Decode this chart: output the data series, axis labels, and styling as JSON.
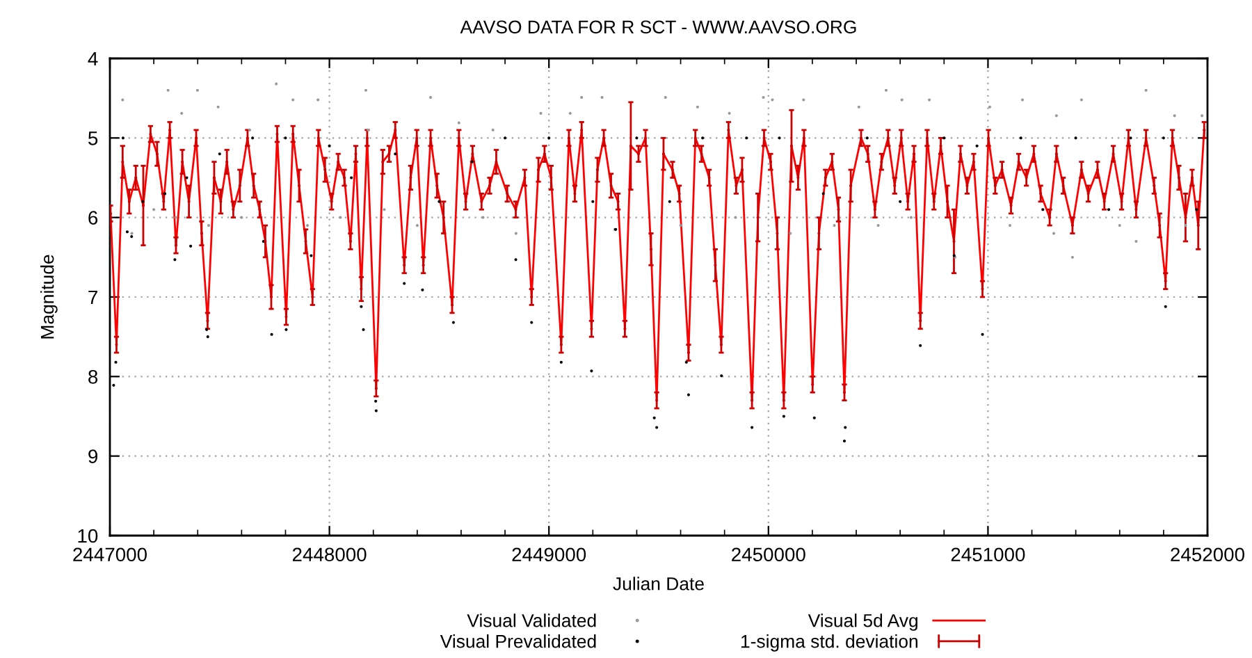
{
  "chart_data": {
    "type": "line",
    "title": "AAVSO DATA FOR R SCT - WWW.AAVSO.ORG",
    "xlabel": "Julian Date",
    "ylabel": "Magnitude",
    "xlim": [
      2447000,
      2452000
    ],
    "ylim": [
      10,
      4
    ],
    "xticks": [
      2447000,
      {
        "value": 2447200,
        "label": null
      },
      {
        "value": 2447400,
        "label": null
      },
      {
        "value": 2447600,
        "label": null
      },
      {
        "value": 2447800,
        "label": null
      },
      2448000,
      {
        "value": 2448200,
        "label": null
      },
      {
        "value": 2448400,
        "label": null
      },
      {
        "value": 2448600,
        "label": null
      },
      {
        "value": 2448800,
        "label": null
      },
      2449000,
      {
        "value": 2449200,
        "label": null
      },
      {
        "value": 2449400,
        "label": null
      },
      {
        "value": 2449600,
        "label": null
      },
      {
        "value": 2449800,
        "label": null
      },
      2450000,
      {
        "value": 2450200,
        "label": null
      },
      {
        "value": 2450400,
        "label": null
      },
      {
        "value": 2450600,
        "label": null
      },
      {
        "value": 2450800,
        "label": null
      },
      2451000,
      {
        "value": 2451200,
        "label": null
      },
      {
        "value": 2451400,
        "label": null
      },
      {
        "value": 2451600,
        "label": null
      },
      {
        "value": 2451800,
        "label": null
      },
      2452000
    ],
    "yticks": [
      4,
      5,
      6,
      7,
      8,
      9,
      10
    ],
    "grid": true,
    "legend": "bottom",
    "series": [
      {
        "name": "Visual Validated",
        "type": "scatter",
        "marker": "circle",
        "color": "#999999",
        "x": [
          2447058,
          2447265,
          2447327,
          2447399,
          2447493,
          2447637,
          2447758,
          2447834,
          2447948,
          2448166,
          2448176,
          2448461,
          2448590,
          2448745,
          2448963,
          2449097,
          2449149,
          2449242,
          2449531,
          2449677,
          2449822,
          2449977,
          2450018,
          2450160,
          2450412,
          2450536,
          2450608,
          2450733,
          2451008,
          2451157,
          2451312,
          2451426,
          2451720,
          2451850,
          2451975,
          2447100,
          2447200,
          2447300,
          2447450,
          2447600,
          2447700,
          2447900,
          2448050,
          2448250,
          2448400,
          2448700,
          2448850,
          2449300,
          2449600,
          2449850,
          2450100,
          2450300,
          2450500,
          2450650,
          2450850,
          2451100,
          2451300,
          2451385,
          2451600,
          2451675,
          2451900
        ],
        "values": [
          4.52,
          4.4,
          4.69,
          4.4,
          4.61,
          4.9,
          4.32,
          4.52,
          4.52,
          4.4,
          4.9,
          4.49,
          4.81,
          4.9,
          4.69,
          4.69,
          4.49,
          4.49,
          4.49,
          4.61,
          4.69,
          4.49,
          4.52,
          4.52,
          4.61,
          4.4,
          4.52,
          4.52,
          4.61,
          4.52,
          4.72,
          4.52,
          4.4,
          4.72,
          4.72,
          6.2,
          5.9,
          6.0,
          6.1,
          6.0,
          6.3,
          6.1,
          6.0,
          5.9,
          6.1,
          6.0,
          6.2,
          6.15,
          6.1,
          6.0,
          6.2,
          6.1,
          6.1,
          6.0,
          6.5,
          6.1,
          6.2,
          6.5,
          6.1,
          6.3,
          6.1
        ]
      },
      {
        "name": "Visual Prevalidated",
        "type": "scatter",
        "marker": "circle",
        "color": "#000000",
        "x": [
          2447017,
          2447027,
          2447079,
          2447099,
          2447296,
          2447368,
          2447441,
          2447446,
          2447700,
          2447737,
          2447803,
          2447917,
          2448145,
          2448155,
          2448211,
          2448213,
          2448341,
          2448424,
          2448565,
          2448849,
          2448921,
          2449056,
          2449194,
          2449304,
          2449480,
          2449491,
          2449626,
          2449636,
          2449786,
          2449925,
          2450070,
          2450209,
          2450346,
          2450350,
          2450692,
          2450846,
          2450975,
          2451809,
          2447060,
          2447150,
          2447250,
          2447350,
          2447500,
          2447650,
          2447800,
          2448000,
          2448100,
          2448300,
          2448500,
          2448650,
          2448800,
          2449000,
          2449200,
          2449400,
          2449550,
          2449700,
          2449900,
          2450050,
          2450250,
          2450450,
          2450600,
          2450800,
          2450950,
          2451150,
          2451250,
          2451400,
          2451550,
          2451650,
          2451800,
          2451950
        ],
        "values": [
          8.11,
          7.82,
          6.18,
          6.24,
          6.53,
          6.36,
          7.41,
          7.5,
          6.3,
          7.47,
          7.41,
          6.48,
          7.12,
          7.41,
          8.31,
          8.43,
          6.83,
          6.91,
          7.32,
          6.53,
          7.32,
          7.82,
          7.93,
          6.15,
          8.52,
          8.64,
          7.82,
          8.23,
          7.99,
          8.64,
          8.5,
          8.52,
          8.81,
          8.64,
          7.61,
          6.48,
          7.47,
          7.12,
          5.0,
          5.8,
          5.7,
          5.5,
          5.2,
          5.0,
          5.0,
          5.1,
          5.5,
          5.2,
          5.8,
          5.3,
          5.0,
          5.0,
          5.8,
          5.0,
          5.8,
          5.0,
          5.0,
          5.0,
          5.7,
          5.0,
          5.8,
          5.0,
          5.1,
          5.0,
          5.9,
          5.0,
          5.9,
          5.0,
          5.0,
          5.9
        ]
      },
      {
        "name": "Visual 5d Avg",
        "color": "#ff0000",
        "x": [
          2447003,
          2447030,
          2447058,
          2447088,
          2447118,
          2447152,
          2447185,
          2447215,
          2447245,
          2447273,
          2447301,
          2447330,
          2447360,
          2447393,
          2447418,
          2447445,
          2447475,
          2447505,
          2447533,
          2447562,
          2447592,
          2447627,
          2447655,
          2447682,
          2447708,
          2447735,
          2447762,
          2447803,
          2447834,
          2447862,
          2447892,
          2447923,
          2447950,
          2447980,
          2448010,
          2448040,
          2448068,
          2448096,
          2448120,
          2448145,
          2448172,
          2448213,
          2448243,
          2448272,
          2448300,
          2448341,
          2448370,
          2448398,
          2448428,
          2448461,
          2448490,
          2448520,
          2448559,
          2448590,
          2448621,
          2448652,
          2448693,
          2448730,
          2448760,
          2448810,
          2448849,
          2448890,
          2448921,
          2448952,
          2448980,
          2449010,
          2449056,
          2449091,
          2449118,
          2449149,
          2449194,
          2449221,
          2449250,
          2449283,
          2449315,
          2449346,
          2449373,
          2449408,
          2449440,
          2449465,
          2449491,
          2449522,
          2449563,
          2449594,
          2449636,
          2449667,
          2449695,
          2449730,
          2449758,
          2449785,
          2449818,
          2449853,
          2449880,
          2449925,
          2449952,
          2449980,
          2450010,
          2450040,
          2450070,
          2450105,
          2450135,
          2450162,
          2450201,
          2450230,
          2450260,
          2450290,
          2450319,
          2450346,
          2450375,
          2450422,
          2450453,
          2450485,
          2450515,
          2450545,
          2450575,
          2450605,
          2450635,
          2450663,
          2450692,
          2450723,
          2450754,
          2450785,
          2450815,
          2450845,
          2450875,
          2450905,
          2450935,
          2450975,
          2451002,
          2451033,
          2451064,
          2451105,
          2451140,
          2451175,
          2451209,
          2451240,
          2451281,
          2451312,
          2451343,
          2451385,
          2451426,
          2451457,
          2451499,
          2451530,
          2451571,
          2451609,
          2451640,
          2451675,
          2451720,
          2451757,
          2451782,
          2451809,
          2451840,
          2451870,
          2451900,
          2451930,
          2451958,
          2451985
        ],
        "values": [
          5.95,
          7.6,
          5.3,
          5.8,
          5.5,
          5.85,
          4.95,
          5.2,
          5.8,
          4.9,
          6.35,
          5.3,
          5.8,
          5.0,
          6.2,
          7.3,
          5.5,
          5.8,
          5.3,
          5.9,
          5.6,
          5.0,
          5.6,
          5.9,
          6.3,
          7.0,
          4.95,
          7.25,
          4.95,
          5.6,
          6.3,
          7.0,
          5.0,
          5.4,
          5.8,
          5.3,
          5.5,
          6.3,
          5.2,
          6.9,
          5.0,
          8.15,
          5.3,
          5.2,
          4.9,
          6.6,
          5.5,
          5.0,
          6.6,
          5.0,
          5.6,
          6.0,
          7.1,
          5.0,
          5.8,
          5.2,
          5.8,
          5.6,
          5.3,
          5.7,
          5.9,
          5.5,
          7.0,
          5.4,
          5.2,
          5.5,
          7.6,
          5.0,
          5.7,
          4.9,
          7.4,
          5.4,
          5.0,
          5.6,
          5.8,
          7.4,
          5.1,
          5.2,
          5.0,
          6.4,
          8.3,
          5.2,
          5.4,
          5.7,
          7.7,
          5.0,
          5.2,
          5.5,
          6.6,
          7.6,
          4.9,
          5.6,
          5.4,
          8.3,
          6.0,
          5.0,
          5.3,
          6.2,
          8.3,
          5.1,
          5.5,
          5.0,
          8.1,
          6.2,
          5.5,
          5.3,
          5.9,
          8.2,
          5.6,
          5.0,
          5.2,
          5.9,
          5.3,
          5.0,
          5.6,
          5.0,
          5.8,
          5.2,
          7.3,
          5.0,
          5.8,
          5.1,
          5.8,
          6.3,
          5.2,
          5.6,
          5.3,
          6.9,
          5.0,
          5.6,
          5.4,
          5.85,
          5.3,
          5.5,
          5.2,
          5.7,
          6.0,
          5.2,
          5.6,
          6.1,
          5.4,
          5.7,
          5.4,
          5.8,
          5.2,
          5.8,
          5.0,
          5.9,
          5.0,
          5.6,
          6.1,
          6.8,
          5.0,
          5.5,
          6.0,
          5.5,
          6.1,
          4.9
        ]
      },
      {
        "name": "1-sigma std. deviation",
        "type": "scatter",
        "marker": "circle",
        "color": "#cc0000",
        "x": [
          2447003,
          2447030,
          2447058,
          2447088,
          2447118,
          2447152,
          2447185,
          2447215,
          2447245,
          2447273,
          2447301,
          2447330,
          2447360,
          2447393,
          2447418,
          2447445,
          2447475,
          2447505,
          2447533,
          2447562,
          2447592,
          2447627,
          2447655,
          2447682,
          2447708,
          2447735,
          2447762,
          2447803,
          2447834,
          2447862,
          2447892,
          2447923,
          2447950,
          2447980,
          2448010,
          2448040,
          2448068,
          2448096,
          2448120,
          2448145,
          2448172,
          2448213,
          2448243,
          2448272,
          2448300,
          2448341,
          2448370,
          2448398,
          2448428,
          2448461,
          2448490,
          2448520,
          2448559,
          2448590,
          2448621,
          2448652,
          2448693,
          2448730,
          2448760,
          2448810,
          2448849,
          2448890,
          2448921,
          2448952,
          2448980,
          2449010,
          2449056,
          2449091,
          2449118,
          2449149,
          2449194,
          2449221,
          2449250,
          2449283,
          2449315,
          2449346,
          2449373,
          2449408,
          2449440,
          2449465,
          2449491,
          2449522,
          2449563,
          2449594,
          2449636,
          2449667,
          2449695,
          2449730,
          2449758,
          2449785,
          2449818,
          2449853,
          2449880,
          2449925,
          2449952,
          2449980,
          2450010,
          2450040,
          2450070,
          2450105,
          2450135,
          2450162,
          2450201,
          2450230,
          2450260,
          2450290,
          2450319,
          2450346,
          2450375,
          2450422,
          2450453,
          2450485,
          2450515,
          2450545,
          2450575,
          2450605,
          2450635,
          2450663,
          2450692,
          2450723,
          2450754,
          2450785,
          2450815,
          2450845,
          2450875,
          2450905,
          2450935,
          2450975,
          2451002,
          2451033,
          2451064,
          2451105,
          2451140,
          2451175,
          2451209,
          2451240,
          2451281,
          2451312,
          2451343,
          2451385,
          2451426,
          2451457,
          2451499,
          2451530,
          2451571,
          2451609,
          2451640,
          2451675,
          2451720,
          2451757,
          2451782,
          2451809,
          2451840,
          2451870,
          2451900,
          2451930,
          2451958,
          2451985
        ],
        "values": [
          5.95,
          7.6,
          5.3,
          5.8,
          5.5,
          5.85,
          4.95,
          5.2,
          5.8,
          4.9,
          6.35,
          5.3,
          5.8,
          5.0,
          6.2,
          7.3,
          5.5,
          5.8,
          5.3,
          5.9,
          5.6,
          5.0,
          5.6,
          5.9,
          6.3,
          7.0,
          4.95,
          7.25,
          4.95,
          5.6,
          6.3,
          7.0,
          5.0,
          5.4,
          5.8,
          5.3,
          5.5,
          6.3,
          5.2,
          6.9,
          5.0,
          8.15,
          5.3,
          5.2,
          4.9,
          6.6,
          5.5,
          5.0,
          6.6,
          5.0,
          5.6,
          6.0,
          7.1,
          5.0,
          5.8,
          5.2,
          5.8,
          5.6,
          5.3,
          5.7,
          5.9,
          5.5,
          7.0,
          5.4,
          5.2,
          5.5,
          7.6,
          5.0,
          5.7,
          4.9,
          7.4,
          5.4,
          5.0,
          5.6,
          5.8,
          7.4,
          5.1,
          5.2,
          5.0,
          6.4,
          8.3,
          5.2,
          5.4,
          5.7,
          7.7,
          5.0,
          5.2,
          5.5,
          6.6,
          7.6,
          4.9,
          5.6,
          5.4,
          8.3,
          6.0,
          5.0,
          5.3,
          6.2,
          8.3,
          5.1,
          5.5,
          5.0,
          8.1,
          6.2,
          5.5,
          5.3,
          5.9,
          8.2,
          5.6,
          5.0,
          5.2,
          5.9,
          5.3,
          5.0,
          5.6,
          5.0,
          5.8,
          5.2,
          7.3,
          5.0,
          5.8,
          5.1,
          5.8,
          6.3,
          5.2,
          5.6,
          5.3,
          6.9,
          5.0,
          5.6,
          5.4,
          5.85,
          5.3,
          5.5,
          5.2,
          5.7,
          6.0,
          5.2,
          5.6,
          6.1,
          5.4,
          5.7,
          5.4,
          5.8,
          5.2,
          5.8,
          5.0,
          5.9,
          5.0,
          5.6,
          6.1,
          6.8,
          5.0,
          5.5,
          6.0,
          5.5,
          6.1,
          4.9
        ],
        "errors": [
          0.1,
          0.1,
          0.2,
          0.15,
          0.15,
          0.5,
          0.1,
          0.15,
          0.1,
          0.1,
          0.1,
          0.15,
          0.2,
          0.1,
          0.15,
          0.1,
          0.2,
          0.15,
          0.15,
          0.1,
          0.2,
          0.1,
          0.15,
          0.1,
          0.2,
          0.15,
          0.1,
          0.1,
          0.1,
          0.2,
          0.15,
          0.1,
          0.1,
          0.15,
          0.1,
          0.1,
          0.1,
          0.1,
          0.1,
          0.15,
          0.1,
          0.1,
          0.15,
          0.1,
          0.1,
          0.1,
          0.15,
          0.1,
          0.1,
          0.1,
          0.15,
          0.2,
          0.1,
          0.1,
          0.1,
          0.1,
          0.1,
          0.1,
          0.15,
          0.1,
          0.1,
          0.1,
          0.1,
          0.15,
          0.1,
          0.15,
          0.1,
          0.1,
          0.1,
          0.1,
          0.1,
          0.15,
          0.1,
          0.15,
          0.1,
          0.1,
          0.55,
          0.1,
          0.1,
          0.2,
          0.1,
          0.2,
          0.1,
          0.1,
          0.1,
          0.1,
          0.1,
          0.1,
          0.2,
          0.1,
          0.1,
          0.1,
          0.15,
          0.1,
          0.3,
          0.1,
          0.1,
          0.2,
          0.1,
          0.45,
          0.15,
          0.1,
          0.1,
          0.2,
          0.1,
          0.1,
          0.15,
          0.1,
          0.2,
          0.1,
          0.1,
          0.1,
          0.1,
          0.1,
          0.1,
          0.1,
          0.1,
          0.1,
          0.1,
          0.1,
          0.1,
          0.1,
          0.2,
          0.4,
          0.1,
          0.1,
          0.1,
          0.1,
          0.1,
          0.1,
          0.1,
          0.1,
          0.1,
          0.1,
          0.1,
          0.1,
          0.1,
          0.1,
          0.1,
          0.1,
          0.1,
          0.1,
          0.1,
          0.1,
          0.1,
          0.1,
          0.1,
          0.1,
          0.1,
          0.1,
          0.15,
          0.1,
          0.1,
          0.15,
          0.3,
          0.1,
          0.3,
          0.1
        ]
      }
    ]
  }
}
